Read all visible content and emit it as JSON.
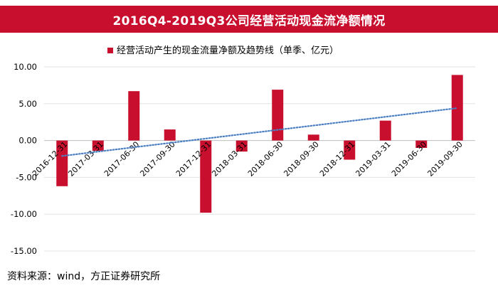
{
  "header": {
    "title": "2016Q4-2019Q3公司经营活动现金流净额情况"
  },
  "chart_data": {
    "type": "bar",
    "legend_label": "经营活动产生的现金流量净额及趋势线（单季、亿元）",
    "legend_position": "top",
    "categories": [
      "2016-12-31",
      "2017-03-31",
      "2017-06-30",
      "2017-09-30",
      "2017-12-31",
      "2018-03-31",
      "2018-06-30",
      "2018-09-30",
      "2018-12-31",
      "2019-03-31",
      "2019-06-30",
      "2019-09-30"
    ],
    "values": [
      -6.2,
      -1.4,
      6.7,
      1.5,
      -9.8,
      -1.5,
      6.9,
      0.8,
      -2.6,
      2.7,
      -1.0,
      8.9
    ],
    "trendline": {
      "type": "linear",
      "start": -2.1,
      "end": 4.4
    },
    "ylim": [
      -15,
      10
    ],
    "yticks": [
      "10.00",
      "5.00",
      "0.00",
      "-5.00",
      "-10.00",
      "-15.00"
    ],
    "grid": true,
    "bar_color": "#c8102e",
    "trend_color": "#4a7fc1"
  },
  "footer": {
    "source": "资料来源：wind，方正证券研究所"
  }
}
